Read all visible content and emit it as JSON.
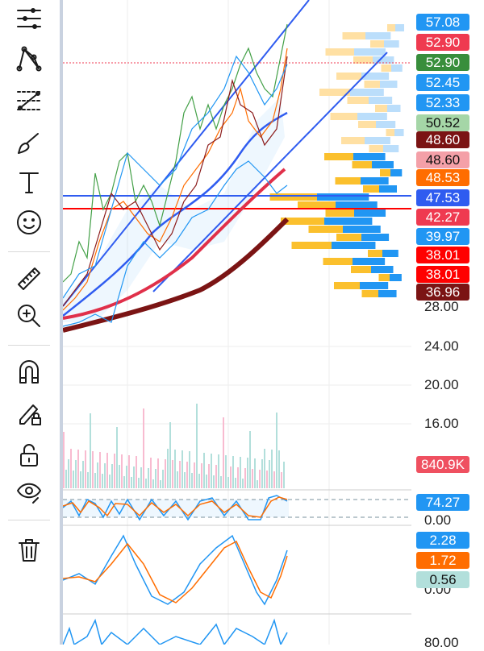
{
  "toolbar": {
    "items": [
      {
        "name": "menu-lines-icon"
      },
      {
        "name": "pattern-tool-icon"
      },
      {
        "name": "fib-tool-icon"
      },
      {
        "name": "brush-icon"
      },
      {
        "name": "text-icon",
        "glyph": "T"
      },
      {
        "name": "emoji-icon"
      },
      {
        "name": "ruler-icon"
      },
      {
        "name": "zoom-in-icon"
      },
      {
        "name": "magnet-icon"
      },
      {
        "name": "lock-drawing-icon"
      },
      {
        "name": "unlock-icon"
      },
      {
        "name": "eye-icon"
      },
      {
        "name": "trash-icon"
      }
    ]
  },
  "price_scale": {
    "badges": [
      {
        "value": "57.08",
        "bg": "#2196f3",
        "fg": "#ffffff"
      },
      {
        "value": "52.90",
        "bg": "#ef3a50",
        "fg": "#ffffff"
      },
      {
        "value": "52.90",
        "bg": "#388e3c",
        "fg": "#ffffff"
      },
      {
        "value": "52.45",
        "bg": "#2196f3",
        "fg": "#ffffff"
      },
      {
        "value": "52.33",
        "bg": "#2196f3",
        "fg": "#ffffff"
      },
      {
        "value": "50.52",
        "bg": "#a5d6a7",
        "fg": "#111111"
      },
      {
        "value": "48.60",
        "bg": "#7b1414",
        "fg": "#ffffff"
      },
      {
        "value": "48.60",
        "bg": "#f4a0a8",
        "fg": "#111111"
      },
      {
        "value": "48.53",
        "bg": "#ff6d00",
        "fg": "#ffffff"
      },
      {
        "value": "47.53",
        "bg": "#2f5cf0",
        "fg": "#ffffff"
      },
      {
        "value": "42.27",
        "bg": "#ef3a50",
        "fg": "#ffffff"
      },
      {
        "value": "39.97",
        "bg": "#2196f3",
        "fg": "#ffffff"
      },
      {
        "value": "38.01",
        "bg": "#ff0000",
        "fg": "#ffffff"
      },
      {
        "value": "38.01",
        "bg": "#ff0000",
        "fg": "#ffffff"
      },
      {
        "value": "36.96",
        "bg": "#7b1414",
        "fg": "#ffffff"
      }
    ],
    "ticks": [
      "28.00",
      "24.00",
      "20.00",
      "16.00"
    ],
    "volume_label": {
      "value": "840.9K",
      "bg": "#ef5060"
    },
    "rsi": {
      "value": "74.27",
      "bg": "#2196f3",
      "tick": "0.00"
    },
    "macd": [
      {
        "value": "2.28",
        "bg": "#2196f3",
        "fg": "#ffffff"
      },
      {
        "value": "1.72",
        "bg": "#ff6d00",
        "fg": "#ffffff"
      },
      {
        "value": "0.56",
        "bg": "#b2dfdb",
        "fg": "#111111"
      }
    ],
    "macd_tick": "0.00",
    "bottom_tick": "80.00"
  }
}
